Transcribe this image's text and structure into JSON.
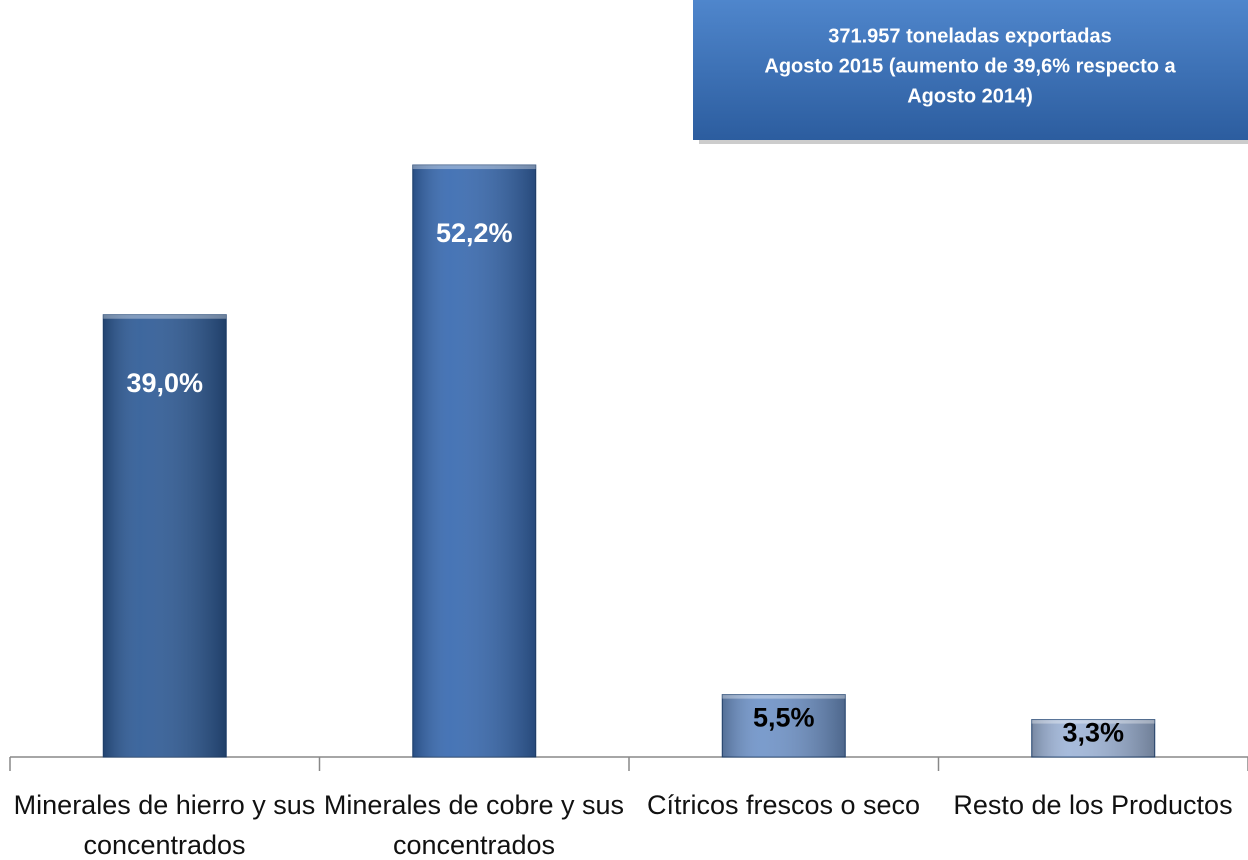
{
  "chart_data": {
    "type": "bar",
    "annotations": [
      "371.957 toneladas exportadas",
      "Agosto 2015  (aumento de 39,6% respecto a",
      "Agosto 2014)"
    ],
    "categories": [
      "Minerales de hierro y sus concentrados",
      "Minerales de cobre y sus concentrados",
      "Cítricos frescos o seco",
      "Resto de los Productos"
    ],
    "values": [
      39.0,
      52.2,
      5.5,
      3.3
    ],
    "value_labels": [
      "39,0%",
      "52,2%",
      "5,5%",
      "3,3%"
    ],
    "colors": [
      "#2d5a96",
      "#3769b0",
      "#6f93c8",
      "#9fb5d8"
    ],
    "value_label_colors": [
      "#ffffff",
      "#ffffff",
      "#000000",
      "#000000"
    ]
  }
}
